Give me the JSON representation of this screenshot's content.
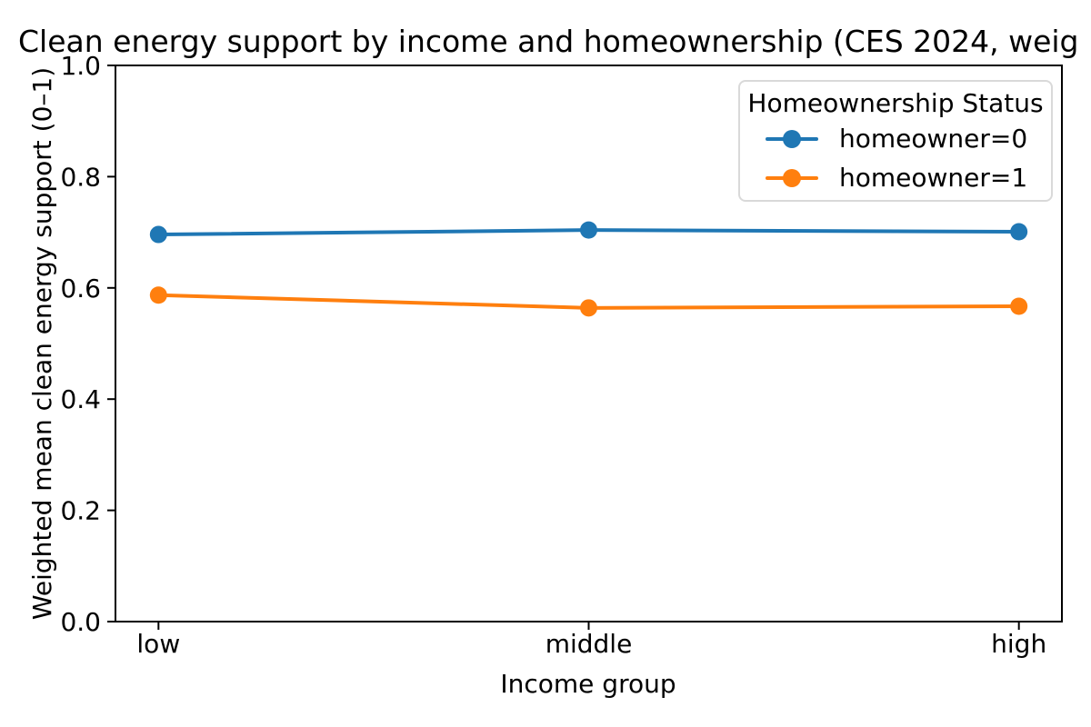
{
  "title": "Clean energy support by income and homeownership (CES 2024, weig",
  "chart_data": {
    "type": "line",
    "categories": [
      "low",
      "middle",
      "high"
    ],
    "series": [
      {
        "name": "homeowner=0",
        "color": "#1f77b4",
        "values": [
          0.696,
          0.704,
          0.701
        ]
      },
      {
        "name": "homeowner=1",
        "color": "#ff7f0e",
        "values": [
          0.587,
          0.564,
          0.567
        ]
      }
    ],
    "xlabel": "Income group",
    "ylabel": "Weighted mean clean energy support (0–1)",
    "ylim": [
      0.0,
      1.0
    ],
    "yticks": [
      "0.0",
      "0.2",
      "0.4",
      "0.6",
      "0.8",
      "1.0"
    ],
    "grid": false,
    "legend": {
      "title": "Homeownership Status",
      "position": "upper right",
      "entries": [
        "homeowner=0",
        "homeowner=1"
      ]
    },
    "marker": "circle",
    "text_color": "#000000",
    "spine_color": "#000000",
    "background_color": "#ffffff"
  }
}
